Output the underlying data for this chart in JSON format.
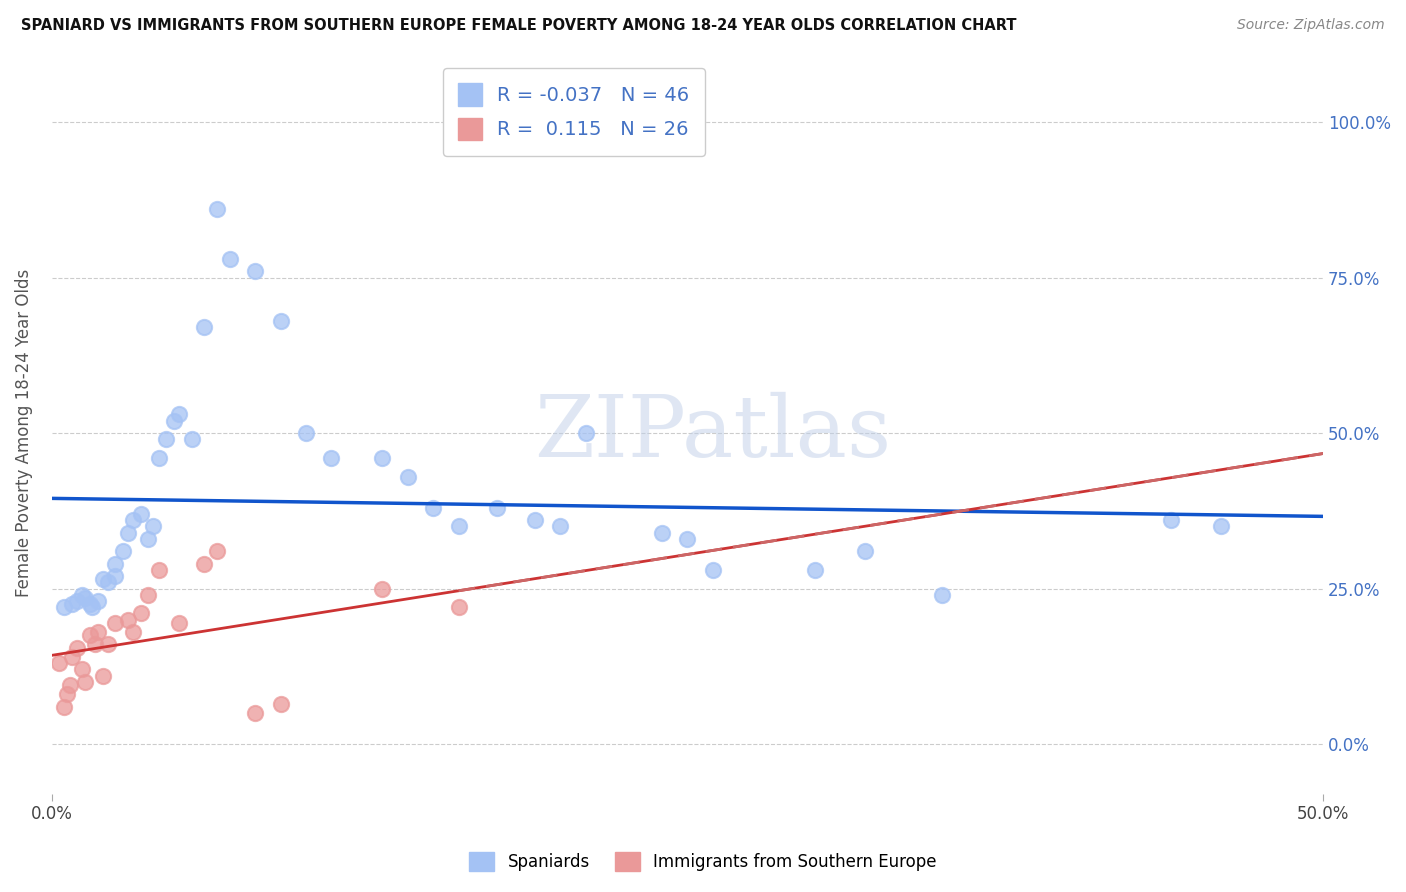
{
  "title": "SPANIARD VS IMMIGRANTS FROM SOUTHERN EUROPE FEMALE POVERTY AMONG 18-24 YEAR OLDS CORRELATION CHART",
  "source": "Source: ZipAtlas.com",
  "ylabel": "Female Poverty Among 18-24 Year Olds",
  "yticks_labels": [
    "0.0%",
    "25.0%",
    "50.0%",
    "75.0%",
    "100.0%"
  ],
  "ytick_vals": [
    0.0,
    0.25,
    0.5,
    0.75,
    1.0
  ],
  "xlim": [
    0.0,
    0.5
  ],
  "ylim": [
    -0.08,
    1.08
  ],
  "r_spaniards": -0.037,
  "n_spaniards": 46,
  "r_immigrants": 0.115,
  "n_immigrants": 26,
  "spaniard_color": "#a4c2f4",
  "immigrant_color": "#ea9999",
  "trend_spaniard_color": "#1155cc",
  "trend_immigrant_color": "#cc3333",
  "trend_immigrant_dash_color": "#cc6666",
  "watermark_color": "#c0cfe8",
  "spaniards_x": [
    0.005,
    0.008,
    0.01,
    0.012,
    0.013,
    0.015,
    0.016,
    0.018,
    0.02,
    0.022,
    0.025,
    0.025,
    0.028,
    0.03,
    0.032,
    0.035,
    0.038,
    0.04,
    0.042,
    0.045,
    0.048,
    0.05,
    0.055,
    0.06,
    0.065,
    0.07,
    0.08,
    0.09,
    0.1,
    0.11,
    0.13,
    0.14,
    0.15,
    0.16,
    0.175,
    0.19,
    0.2,
    0.21,
    0.24,
    0.25,
    0.26,
    0.3,
    0.32,
    0.35,
    0.44,
    0.46
  ],
  "spaniards_y": [
    0.22,
    0.225,
    0.23,
    0.24,
    0.235,
    0.225,
    0.22,
    0.23,
    0.265,
    0.26,
    0.27,
    0.29,
    0.31,
    0.34,
    0.36,
    0.37,
    0.33,
    0.35,
    0.46,
    0.49,
    0.52,
    0.53,
    0.49,
    0.67,
    0.86,
    0.78,
    0.76,
    0.68,
    0.5,
    0.46,
    0.46,
    0.43,
    0.38,
    0.35,
    0.38,
    0.36,
    0.35,
    0.5,
    0.34,
    0.33,
    0.28,
    0.28,
    0.31,
    0.24,
    0.36,
    0.35
  ],
  "immigrants_x": [
    0.003,
    0.005,
    0.006,
    0.007,
    0.008,
    0.01,
    0.012,
    0.013,
    0.015,
    0.017,
    0.018,
    0.02,
    0.022,
    0.025,
    0.03,
    0.032,
    0.035,
    0.038,
    0.042,
    0.05,
    0.06,
    0.065,
    0.08,
    0.09,
    0.13,
    0.16
  ],
  "immigrants_y": [
    0.13,
    0.06,
    0.08,
    0.095,
    0.14,
    0.155,
    0.12,
    0.1,
    0.175,
    0.16,
    0.18,
    0.11,
    0.16,
    0.195,
    0.2,
    0.18,
    0.21,
    0.24,
    0.28,
    0.195,
    0.29,
    0.31,
    0.05,
    0.065,
    0.25,
    0.22
  ]
}
